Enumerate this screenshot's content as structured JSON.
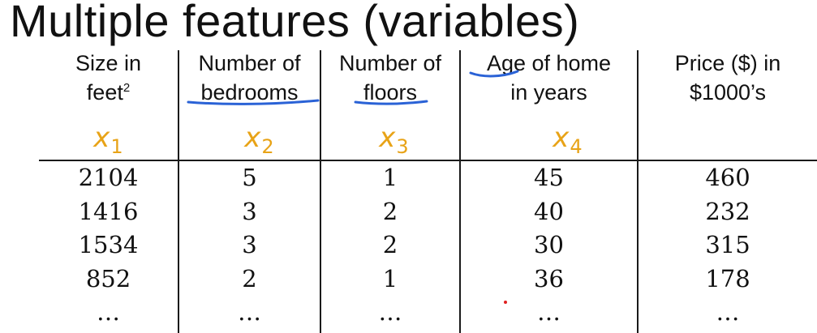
{
  "title": "Multiple features (variables)",
  "columns": [
    {
      "header_lines": [
        "Size in",
        "feet"
      ],
      "header_sup": "2",
      "var_name": "x",
      "var_sub": "1"
    },
    {
      "header_lines": [
        "Number of",
        "bedrooms"
      ],
      "header_sup": "",
      "var_name": "x",
      "var_sub": "2"
    },
    {
      "header_lines": [
        "Number of",
        "floors"
      ],
      "header_sup": "",
      "var_name": "x",
      "var_sub": "3"
    },
    {
      "header_lines": [
        "Age of home",
        "in years"
      ],
      "header_sup": "",
      "var_name": "x",
      "var_sub": "4"
    },
    {
      "header_lines": [
        "Price ($) in",
        "$1000’s"
      ],
      "header_sup": "",
      "var_name": "",
      "var_sub": ""
    }
  ],
  "rows": [
    [
      "2104",
      "5",
      "1",
      "45",
      "460"
    ],
    [
      "1416",
      "3",
      "2",
      "40",
      "232"
    ],
    [
      "1534",
      "3",
      "2",
      "30",
      "315"
    ],
    [
      "852",
      "2",
      "1",
      "36",
      "178"
    ],
    [
      "…",
      "…",
      "…",
      "…",
      "…"
    ]
  ],
  "colors": {
    "text": "#111111",
    "handwriting_variables": "#e8a317",
    "handwriting_underline": "#2a62d6",
    "pointer_dot": "#e02020"
  }
}
